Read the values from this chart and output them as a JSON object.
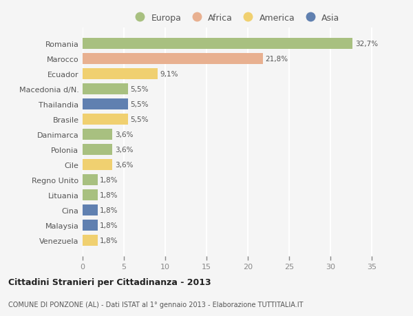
{
  "categories": [
    "Romania",
    "Marocco",
    "Ecuador",
    "Macedonia d/N.",
    "Thailandia",
    "Brasile",
    "Danimarca",
    "Polonia",
    "Cile",
    "Regno Unito",
    "Lituania",
    "Cina",
    "Malaysia",
    "Venezuela"
  ],
  "values": [
    32.7,
    21.8,
    9.1,
    5.5,
    5.5,
    5.5,
    3.6,
    3.6,
    3.6,
    1.8,
    1.8,
    1.8,
    1.8,
    1.8
  ],
  "labels": [
    "32,7%",
    "21,8%",
    "9,1%",
    "5,5%",
    "5,5%",
    "5,5%",
    "3,6%",
    "3,6%",
    "3,6%",
    "1,8%",
    "1,8%",
    "1,8%",
    "1,8%",
    "1,8%"
  ],
  "bar_colors": [
    "#a8c080",
    "#e8b090",
    "#f0d070",
    "#a8c080",
    "#6080b0",
    "#f0d070",
    "#a8c080",
    "#a8c080",
    "#f0d070",
    "#a8c080",
    "#a8c080",
    "#6080b0",
    "#6080b0",
    "#f0d070"
  ],
  "legend_labels": [
    "Europa",
    "Africa",
    "America",
    "Asia"
  ],
  "legend_colors": [
    "#a8c080",
    "#e8b090",
    "#f0d070",
    "#6080b0"
  ],
  "title": "Cittadini Stranieri per Cittadinanza - 2013",
  "subtitle": "COMUNE DI PONZONE (AL) - Dati ISTAT al 1° gennaio 2013 - Elaborazione TUTTITALIA.IT",
  "xlim": [
    0,
    37
  ],
  "xticks": [
    0,
    5,
    10,
    15,
    20,
    25,
    30,
    35
  ],
  "background_color": "#f5f5f5",
  "grid_color": "#ffffff",
  "bar_height": 0.72
}
